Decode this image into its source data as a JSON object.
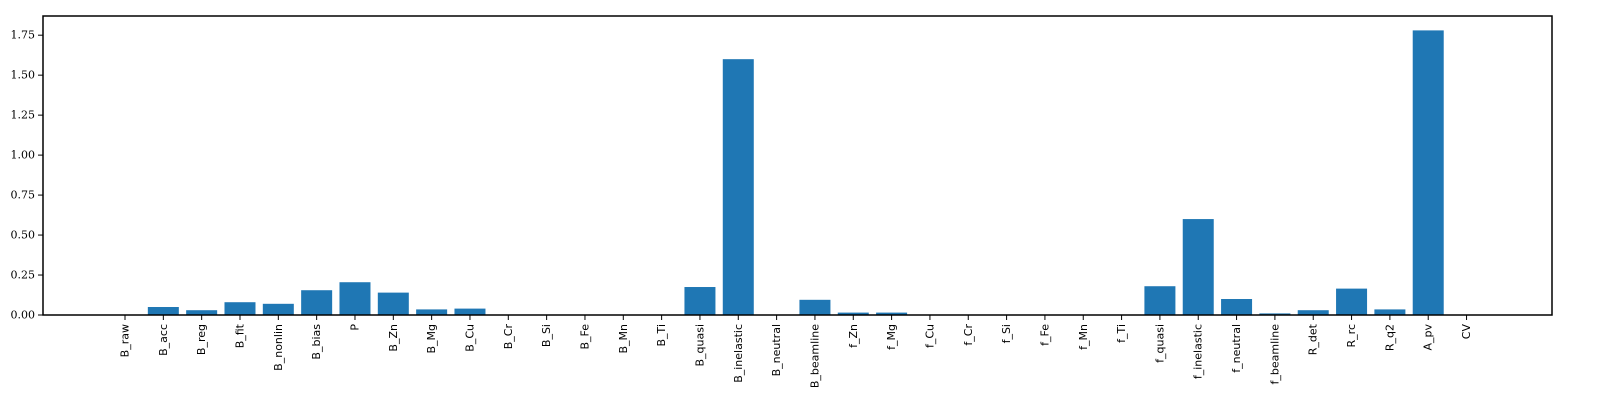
{
  "chart_data": {
    "type": "bar",
    "bar_color": "#1f77b4",
    "grid": false,
    "ylim": [
      0,
      1.87
    ],
    "yticks": [
      "0.00",
      "0.25",
      "0.50",
      "0.75",
      "1.00",
      "1.25",
      "1.50",
      "1.75"
    ],
    "categories": [
      "B_raw",
      "B_acc",
      "B_reg",
      "B_fit",
      "B_nonlin",
      "B_bias",
      "P",
      "B_Zn",
      "B_Mg",
      "B_Cu",
      "B_Cr",
      "B_Si",
      "B_Fe",
      "B_Mn",
      "B_Ti",
      "B_quasi",
      "B_inelastic",
      "B_neutral",
      "B_beamline",
      "f_Zn",
      "f_Mg",
      "f_Cu",
      "f_Cr",
      "f_Si",
      "f_Fe",
      "f_Mn",
      "f_Ti",
      "f_quasi",
      "f_inelastic",
      "f_neutral",
      "f_beamline",
      "R_det",
      "R_rc",
      "R_q2",
      "A_pv",
      "CV"
    ],
    "values": [
      0.0,
      0.05,
      0.03,
      0.08,
      0.07,
      0.155,
      0.205,
      0.14,
      0.035,
      0.04,
      0.003,
      0.0,
      0.0,
      0.0,
      0.0,
      0.175,
      1.6,
      0.0,
      0.095,
      0.015,
      0.015,
      0.003,
      0.0,
      0.0,
      0.0,
      0.0,
      0.0,
      0.18,
      0.6,
      0.1,
      0.01,
      0.03,
      0.165,
      0.035,
      1.78,
      0.0
    ]
  }
}
